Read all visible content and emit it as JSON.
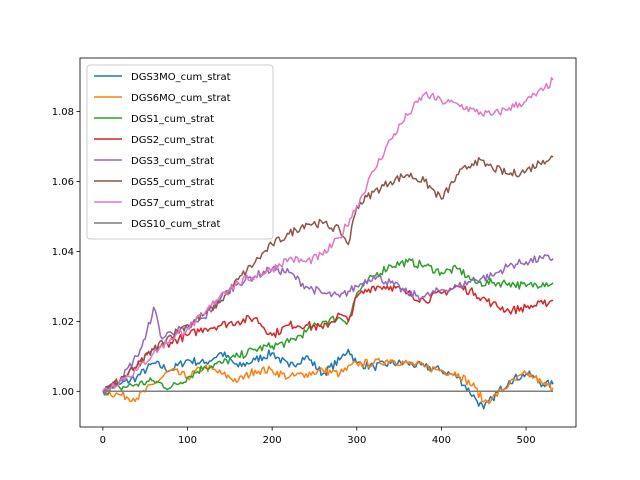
{
  "chart_data": {
    "type": "line",
    "title": "",
    "xlabel": "",
    "ylabel": "",
    "xlim": [
      -27,
      559
    ],
    "ylim": [
      0.9898,
      1.0953
    ],
    "xticks": [
      0,
      100,
      200,
      300,
      400,
      500
    ],
    "yticks": [
      1.0,
      1.02,
      1.04,
      1.06,
      1.08
    ],
    "ytick_format": 2,
    "grid": false,
    "legend": "upper-left",
    "series": [
      {
        "name": "DGS3MO_cum_strat",
        "color": "#1f77b4",
        "x": [
          0,
          20,
          40,
          60,
          80,
          100,
          120,
          140,
          160,
          180,
          200,
          220,
          240,
          260,
          280,
          290,
          300,
          320,
          340,
          360,
          380,
          400,
          420,
          440,
          450,
          460,
          480,
          500,
          510,
          520,
          532
        ],
        "y": [
          1.0,
          1.002,
          1.004,
          1.008,
          1.006,
          1.009,
          1.008,
          1.011,
          1.007,
          1.009,
          1.011,
          1.007,
          1.01,
          1.005,
          1.009,
          1.012,
          1.008,
          1.007,
          1.008,
          1.008,
          1.007,
          1.006,
          1.004,
          0.998,
          0.995,
          0.998,
          1.003,
          1.005,
          1.004,
          1.002,
          1.002
        ]
      },
      {
        "name": "DGS6MO_cum_strat",
        "color": "#ff7f0e",
        "x": [
          0,
          20,
          40,
          60,
          80,
          100,
          120,
          140,
          160,
          180,
          200,
          220,
          240,
          260,
          280,
          300,
          320,
          340,
          360,
          380,
          400,
          420,
          440,
          450,
          460,
          480,
          500,
          510,
          520,
          532
        ],
        "y": [
          1.0,
          0.999,
          0.998,
          1.002,
          1.006,
          1.004,
          1.007,
          1.005,
          1.003,
          1.006,
          1.006,
          1.004,
          1.005,
          1.006,
          1.005,
          1.008,
          1.008,
          1.009,
          1.008,
          1.007,
          1.006,
          1.005,
          1.001,
          0.997,
          0.998,
          1.002,
          1.005,
          1.004,
          1.002,
          1.001
        ]
      },
      {
        "name": "DGS1_cum_strat",
        "color": "#2ca02c",
        "x": [
          0,
          20,
          40,
          60,
          80,
          100,
          120,
          140,
          160,
          180,
          200,
          220,
          240,
          260,
          280,
          290,
          300,
          320,
          340,
          360,
          380,
          400,
          420,
          440,
          460,
          480,
          500,
          520,
          532
        ],
        "y": [
          1.0,
          1.001,
          1.002,
          1.003,
          1.001,
          1.004,
          1.007,
          1.008,
          1.01,
          1.012,
          1.013,
          1.014,
          1.017,
          1.02,
          1.021,
          1.02,
          1.028,
          1.033,
          1.036,
          1.037,
          1.036,
          1.034,
          1.035,
          1.031,
          1.031,
          1.031,
          1.03,
          1.031,
          1.031
        ]
      },
      {
        "name": "DGS2_cum_strat",
        "color": "#d62728",
        "x": [
          0,
          20,
          40,
          60,
          80,
          100,
          120,
          140,
          160,
          180,
          200,
          220,
          240,
          260,
          280,
          290,
          300,
          320,
          340,
          360,
          380,
          400,
          420,
          440,
          460,
          480,
          500,
          520,
          532
        ],
        "y": [
          1.0,
          1.003,
          1.007,
          1.012,
          1.014,
          1.016,
          1.018,
          1.019,
          1.02,
          1.021,
          1.016,
          1.019,
          1.019,
          1.018,
          1.022,
          1.02,
          1.027,
          1.03,
          1.03,
          1.028,
          1.026,
          1.028,
          1.03,
          1.028,
          1.025,
          1.023,
          1.024,
          1.025,
          1.026
        ]
      },
      {
        "name": "DGS3_cum_strat",
        "color": "#9467bd",
        "x": [
          0,
          20,
          40,
          50,
          60,
          70,
          80,
          100,
          120,
          140,
          160,
          180,
          200,
          220,
          240,
          260,
          280,
          300,
          320,
          340,
          360,
          380,
          400,
          420,
          440,
          460,
          480,
          500,
          520,
          532
        ],
        "y": [
          1.0,
          1.003,
          1.01,
          1.015,
          1.024,
          1.015,
          1.017,
          1.018,
          1.021,
          1.027,
          1.031,
          1.033,
          1.035,
          1.034,
          1.03,
          1.028,
          1.027,
          1.03,
          1.033,
          1.031,
          1.028,
          1.027,
          1.029,
          1.03,
          1.032,
          1.033,
          1.036,
          1.037,
          1.038,
          1.038
        ]
      },
      {
        "name": "DGS5_cum_strat",
        "color": "#8c564b",
        "x": [
          0,
          20,
          40,
          60,
          80,
          100,
          120,
          140,
          160,
          180,
          200,
          220,
          240,
          260,
          280,
          290,
          300,
          320,
          340,
          360,
          380,
          400,
          420,
          440,
          460,
          480,
          500,
          520,
          532
        ],
        "y": [
          1.0,
          1.003,
          1.007,
          1.012,
          1.016,
          1.019,
          1.022,
          1.026,
          1.032,
          1.037,
          1.042,
          1.045,
          1.048,
          1.048,
          1.046,
          1.042,
          1.053,
          1.057,
          1.06,
          1.062,
          1.06,
          1.055,
          1.062,
          1.066,
          1.064,
          1.062,
          1.063,
          1.066,
          1.067
        ]
      },
      {
        "name": "DGS7_cum_strat",
        "color": "#e377c2",
        "x": [
          0,
          20,
          40,
          60,
          80,
          100,
          120,
          140,
          160,
          180,
          200,
          220,
          240,
          260,
          280,
          300,
          320,
          340,
          360,
          380,
          400,
          420,
          440,
          460,
          480,
          500,
          520,
          532
        ],
        "y": [
          1.0,
          1.003,
          1.006,
          1.011,
          1.015,
          1.018,
          1.022,
          1.028,
          1.031,
          1.033,
          1.035,
          1.038,
          1.037,
          1.039,
          1.044,
          1.053,
          1.063,
          1.072,
          1.079,
          1.085,
          1.083,
          1.082,
          1.08,
          1.079,
          1.081,
          1.083,
          1.086,
          1.089
        ]
      },
      {
        "name": "DGS10_cum_strat",
        "color": "#7f7f7f",
        "x": [
          0,
          532
        ],
        "y": [
          1.0,
          1.0
        ]
      }
    ]
  }
}
